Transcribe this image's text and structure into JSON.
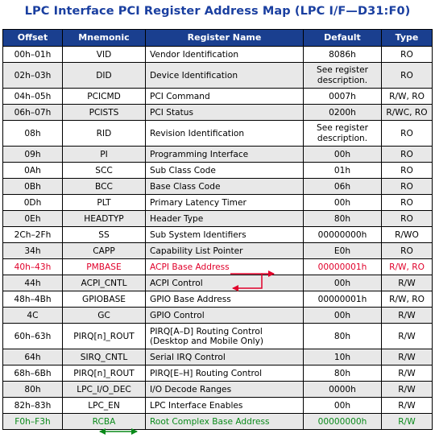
{
  "title": "LPC Interface PCI Register Address Map (LPC I/F—D31:F0)",
  "headers": [
    "Offset",
    "Mnemonic",
    "Register Name",
    "Default",
    "Type"
  ],
  "rows": [
    {
      "offset": "00h–01h",
      "mnemonic": "VID",
      "name": "Vendor Identification",
      "default": "8086h",
      "type": "RO"
    },
    {
      "offset": "02h–03h",
      "mnemonic": "DID",
      "name": "Device Identification",
      "default": "See register description.",
      "type": "RO"
    },
    {
      "offset": "04h–05h",
      "mnemonic": "PCICMD",
      "name": "PCI Command",
      "default": "0007h",
      "type": "R/W, RO"
    },
    {
      "offset": "06h–07h",
      "mnemonic": "PCISTS",
      "name": "PCI Status",
      "default": "0200h",
      "type": "R/WC, RO"
    },
    {
      "offset": "08h",
      "mnemonic": "RID",
      "name": "Revision Identification",
      "default": "See register description.",
      "type": "RO"
    },
    {
      "offset": "09h",
      "mnemonic": "PI",
      "name": "Programming Interface",
      "default": "00h",
      "type": "RO"
    },
    {
      "offset": "0Ah",
      "mnemonic": "SCC",
      "name": "Sub Class Code",
      "default": "01h",
      "type": "RO"
    },
    {
      "offset": "0Bh",
      "mnemonic": "BCC",
      "name": "Base Class Code",
      "default": "06h",
      "type": "RO"
    },
    {
      "offset": "0Dh",
      "mnemonic": "PLT",
      "name": "Primary Latency Timer",
      "default": "00h",
      "type": "RO"
    },
    {
      "offset": "0Eh",
      "mnemonic": "HEADTYP",
      "name": "Header Type",
      "default": "80h",
      "type": "RO"
    },
    {
      "offset": "2Ch–2Fh",
      "mnemonic": "SS",
      "name": "Sub System Identifiers",
      "default": "00000000h",
      "type": "R/WO"
    },
    {
      "offset": "34h",
      "mnemonic": "CAPP",
      "name": "Capability List Pointer",
      "default": "E0h",
      "type": "RO"
    },
    {
      "offset": "40h–43h",
      "mnemonic": "PMBASE",
      "name": "ACPI Base Address",
      "default": "00000001h",
      "type": "R/W, RO"
    },
    {
      "offset": "44h",
      "mnemonic": "ACPI_CNTL",
      "name": "ACPI Control",
      "default": "00h",
      "type": "R/W"
    },
    {
      "offset": "48h–4Bh",
      "mnemonic": "GPIOBASE",
      "name": "GPIO Base Address",
      "default": "00000001h",
      "type": "R/W, RO"
    },
    {
      "offset": "4C",
      "mnemonic": "GC",
      "name": "GPIO Control",
      "default": "00h",
      "type": "R/W"
    },
    {
      "offset": "60h–63h",
      "mnemonic": "PIRQ[n]_ROUT",
      "name": "PIRQ[A–D] Routing Control (Desktop and Mobile Only)",
      "default": "80h",
      "type": "R/W"
    },
    {
      "offset": "64h",
      "mnemonic": "SIRQ_CNTL",
      "name": "Serial IRQ Control",
      "default": "10h",
      "type": "R/W"
    },
    {
      "offset": "68h–6Bh",
      "mnemonic": "PIRQ[n]_ROUT",
      "name": "PIRQ[E–H] Routing Control",
      "default": "80h",
      "type": "R/W"
    },
    {
      "offset": "80h",
      "mnemonic": "LPC_I/O_DEC",
      "name": "I/O Decode Ranges",
      "default": "0000h",
      "type": "R/W"
    },
    {
      "offset": "82h–83h",
      "mnemonic": "LPC_EN",
      "name": "LPC Interface Enables",
      "default": "00h",
      "type": "R/W"
    },
    {
      "offset": "F0h–F3h",
      "mnemonic": "RCBA",
      "name": "Root Complex Base Address",
      "default": "00000000h",
      "type": "R/W"
    }
  ],
  "colors": {
    "header_bg": "#1a3f8f",
    "title": "#1a3fa0",
    "pmbase_highlight": "#e0002a",
    "rcba_highlight": "#0a8a1a",
    "zebra": "#e8e8e8"
  },
  "annotations": {
    "red_arrow": "pmbase-to-acpi-base-address",
    "green_arrow": "rcba-to-root-complex-base-address"
  }
}
